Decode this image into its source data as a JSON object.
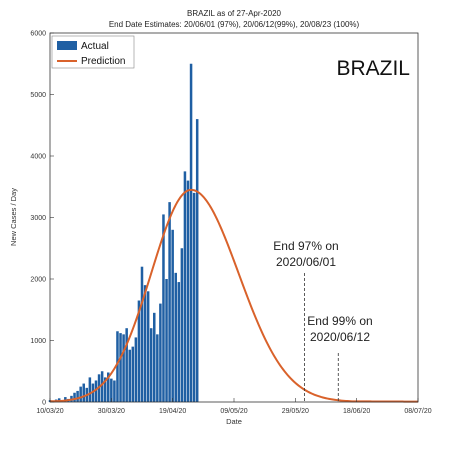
{
  "chart_data": {
    "type": "bar",
    "title": "BRAZIL as of 27-Apr-2020",
    "subtitle": "End Date Estimates: 20/06/01 (97%), 20/06/12(99%), 20/08/23 (100%)",
    "watermark": "BRAZIL",
    "xlabel": "Date",
    "ylabel": "New Cases / Day",
    "xlim": [
      "2020-03-10",
      "2020-07-08"
    ],
    "ylim": [
      0,
      6000
    ],
    "x_ticks": [
      "10/03/20",
      "30/03/20",
      "19/04/20",
      "09/05/20",
      "29/05/20",
      "18/06/20",
      "08/07/20"
    ],
    "y_ticks": [
      "0",
      "1000",
      "2000",
      "3000",
      "4000",
      "5000",
      "6000"
    ],
    "legend": {
      "position": "top-left",
      "entries": [
        "Actual",
        "Prediction"
      ]
    },
    "colors": {
      "actual": "#1f5fa3",
      "prediction": "#d9622b"
    },
    "series": [
      {
        "name": "Actual",
        "kind": "bar",
        "start_date": "2020-03-10",
        "values": [
          30,
          20,
          40,
          60,
          30,
          80,
          50,
          100,
          150,
          180,
          250,
          300,
          230,
          400,
          300,
          350,
          450,
          500,
          400,
          480,
          380,
          350,
          1150,
          1120,
          1100,
          1200,
          850,
          900,
          1050,
          1650,
          2200,
          1900,
          1800,
          1200,
          1450,
          1100,
          1600,
          3050,
          2000,
          3250,
          2800,
          2100,
          1950,
          2500,
          3750,
          3600,
          5500,
          3400,
          4600
        ]
      },
      {
        "name": "Prediction",
        "kind": "line",
        "peak_date": "2020-04-25",
        "peak_value": 3450
      }
    ],
    "annotations": [
      {
        "line1": "End 97% on",
        "line2": "2020/06/01",
        "date": "2020-06-01"
      },
      {
        "line1": "End 99% on",
        "line2": "2020/06/12",
        "date": "2020-06-12"
      }
    ]
  }
}
